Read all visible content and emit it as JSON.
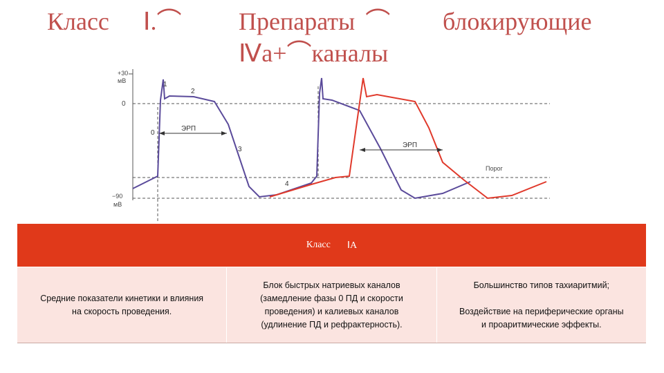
{
  "title": {
    "part1": "Класс",
    "part1_glyphs": "Ⅰ.⌒",
    "part2": "Препараты",
    "part2_glyph": "⌒",
    "part3": "блокирующие",
    "part4_glyphs": "Ⅳa+⌒",
    "part4": "каналы"
  },
  "diagram": {
    "y_top_label": "+30",
    "y_top_unit": "мВ",
    "y_zero_label": "0",
    "y_bottom_label": "−90",
    "y_bottom_unit": "мВ",
    "phase_labels": [
      "0",
      "1",
      "2",
      "3",
      "4"
    ],
    "erp_label_1": "ЭРП",
    "erp_label_2": "ЭРП",
    "threshold_label": "Порог",
    "colors": {
      "normal": "#5a4a9a",
      "drug": "#e0392b",
      "grid": "#555555"
    }
  },
  "table": {
    "header": "Класс",
    "header_glyph": "ⅠA",
    "cells": [
      "Средние показатели кинетики и влияния\nна скорость проведения.",
      "Блок быстрых натриевых каналов\n(замедление фазы 0 ПД и скорости\nпроведения) и калиевых каналов\n(удлинение ПД и рефрактерность).",
      "Большинство типов тахиаритмий;\n\nВоздействие на периферические органы\nи проаритмические эффекты."
    ],
    "colors": {
      "header_bg": "#e0391a",
      "row_bg": "#fbe4e0"
    }
  }
}
